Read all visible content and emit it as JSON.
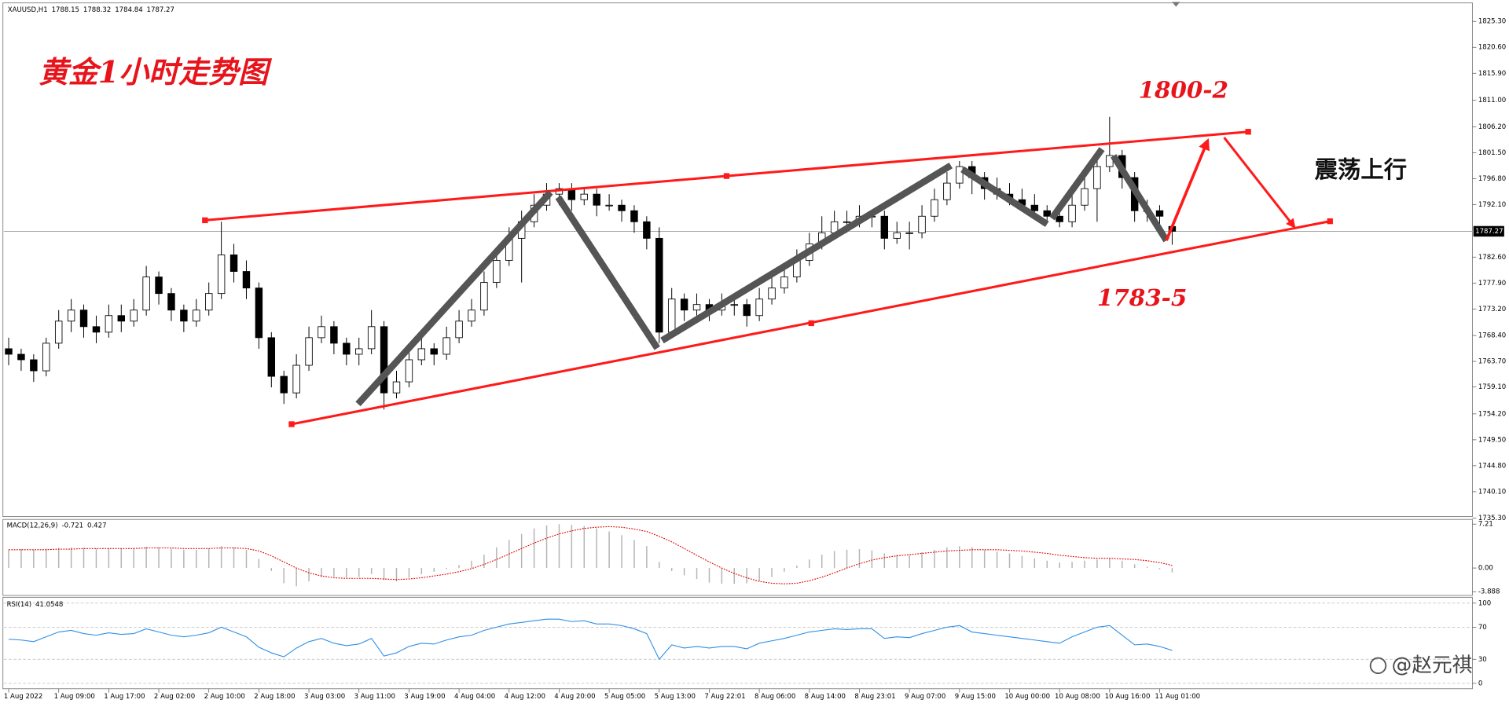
{
  "chart_data": [
    {
      "type": "candlestick",
      "title": "XAUUSD,H1",
      "categories": [
        "1 Aug 2022",
        null,
        null,
        null,
        "1 Aug 09:00",
        null,
        null,
        null,
        "1 Aug 17:00",
        null,
        null,
        null,
        "2 Aug 02:00",
        null,
        null,
        null,
        "2 Aug 10:00",
        null,
        null,
        null,
        "2 Aug 18:00",
        null,
        null,
        null,
        "3 Aug 03:00",
        null,
        null,
        null,
        "3 Aug 11:00",
        null,
        null,
        null,
        "3 Aug 19:00",
        null,
        null,
        null,
        "4 Aug 04:00",
        null,
        null,
        null,
        "4 Aug 12:00",
        null,
        null,
        null,
        "4 Aug 20:00",
        null,
        null,
        null,
        "5 Aug 05:00",
        null,
        null,
        null,
        "5 Aug 13:00",
        null,
        null,
        null,
        "7 Aug 22:01",
        null,
        null,
        null,
        "8 Aug 06:00",
        null,
        null,
        null,
        "8 Aug 14:00",
        null,
        null,
        null,
        "8 Aug 23:01",
        null,
        null,
        null,
        "9 Aug 07:00",
        null,
        null,
        null,
        "9 Aug 15:00",
        null,
        null,
        null,
        "10 Aug 00:00",
        null,
        null,
        null,
        "10 Aug 08:00",
        null,
        null,
        null,
        "10 Aug 16:00",
        null,
        null,
        null,
        "11 Aug 01:00",
        null
      ],
      "ohlc": [
        [
          1766,
          1768,
          1763,
          1765
        ],
        [
          1765,
          1766,
          1762,
          1764
        ],
        [
          1764,
          1765,
          1760,
          1762
        ],
        [
          1762,
          1768,
          1761,
          1767
        ],
        [
          1767,
          1773,
          1766,
          1771
        ],
        [
          1771,
          1775,
          1769,
          1773
        ],
        [
          1773,
          1774,
          1768,
          1770
        ],
        [
          1770,
          1772,
          1767,
          1769
        ],
        [
          1769,
          1774,
          1768,
          1772
        ],
        [
          1772,
          1774,
          1769,
          1771
        ],
        [
          1771,
          1775,
          1770,
          1773
        ],
        [
          1773,
          1781,
          1772,
          1779
        ],
        [
          1779,
          1780,
          1774,
          1776
        ],
        [
          1776,
          1777,
          1771,
          1773
        ],
        [
          1773,
          1774,
          1769,
          1771
        ],
        [
          1771,
          1775,
          1770,
          1773
        ],
        [
          1773,
          1778,
          1772,
          1776
        ],
        [
          1776,
          1789,
          1775,
          1783
        ],
        [
          1783,
          1785,
          1778,
          1780
        ],
        [
          1780,
          1782,
          1775,
          1777
        ],
        [
          1777,
          1778,
          1766,
          1768
        ],
        [
          1768,
          1769,
          1759,
          1761
        ],
        [
          1761,
          1762,
          1756,
          1758
        ],
        [
          1758,
          1765,
          1757,
          1763
        ],
        [
          1763,
          1770,
          1762,
          1768
        ],
        [
          1768,
          1772,
          1767,
          1770
        ],
        [
          1770,
          1771,
          1765,
          1767
        ],
        [
          1767,
          1768,
          1763,
          1765
        ],
        [
          1765,
          1768,
          1763,
          1766
        ],
        [
          1766,
          1773,
          1765,
          1770
        ],
        [
          1770,
          1771,
          1755,
          1758
        ],
        [
          1758,
          1762,
          1757,
          1760
        ],
        [
          1760,
          1766,
          1759,
          1764
        ],
        [
          1764,
          1768,
          1763,
          1766
        ],
        [
          1766,
          1767,
          1763,
          1765
        ],
        [
          1765,
          1770,
          1764,
          1768
        ],
        [
          1768,
          1773,
          1767,
          1771
        ],
        [
          1771,
          1775,
          1770,
          1773
        ],
        [
          1773,
          1780,
          1772,
          1778
        ],
        [
          1778,
          1784,
          1777,
          1782
        ],
        [
          1782,
          1788,
          1781,
          1786
        ],
        [
          1786,
          1791,
          1778,
          1789
        ],
        [
          1789,
          1794,
          1788,
          1792
        ],
        [
          1792,
          1796,
          1791,
          1794
        ],
        [
          1794,
          1796,
          1792,
          1795
        ],
        [
          1795,
          1796,
          1791,
          1793
        ],
        [
          1793,
          1795,
          1792,
          1794
        ],
        [
          1794,
          1795,
          1790,
          1792
        ],
        [
          1792,
          1794,
          1791,
          1792
        ],
        [
          1792,
          1793,
          1789,
          1791
        ],
        [
          1791,
          1792,
          1787,
          1789
        ],
        [
          1789,
          1790,
          1784,
          1786
        ],
        [
          1786,
          1788,
          1767,
          1769
        ],
        [
          1769,
          1777,
          1768,
          1775
        ],
        [
          1775,
          1776,
          1771,
          1773
        ],
        [
          1773,
          1776,
          1772,
          1774
        ],
        [
          1774,
          1775,
          1771,
          1773
        ],
        [
          1773,
          1776,
          1772,
          1774
        ],
        [
          1774,
          1776,
          1772,
          1774
        ],
        [
          1774,
          1775,
          1770,
          1772
        ],
        [
          1772,
          1777,
          1771,
          1775
        ],
        [
          1775,
          1779,
          1774,
          1777
        ],
        [
          1777,
          1781,
          1776,
          1779
        ],
        [
          1779,
          1784,
          1778,
          1782
        ],
        [
          1782,
          1787,
          1781,
          1785
        ],
        [
          1785,
          1790,
          1784,
          1787
        ],
        [
          1787,
          1791,
          1786,
          1789
        ],
        [
          1789,
          1791,
          1787,
          1789
        ],
        [
          1789,
          1792,
          1788,
          1790
        ],
        [
          1790,
          1791,
          1788,
          1790
        ],
        [
          1790,
          1791,
          1784,
          1786
        ],
        [
          1786,
          1789,
          1785,
          1787
        ],
        [
          1787,
          1789,
          1784,
          1787
        ],
        [
          1787,
          1792,
          1786,
          1790
        ],
        [
          1790,
          1795,
          1789,
          1793
        ],
        [
          1793,
          1798,
          1792,
          1796
        ],
        [
          1796,
          1800,
          1795,
          1799
        ],
        [
          1799,
          1800,
          1794,
          1797
        ],
        [
          1797,
          1798,
          1793,
          1795
        ],
        [
          1795,
          1797,
          1793,
          1794
        ],
        [
          1794,
          1796,
          1792,
          1793
        ],
        [
          1793,
          1795,
          1791,
          1792
        ],
        [
          1792,
          1794,
          1790,
          1791
        ],
        [
          1791,
          1792,
          1789,
          1790
        ],
        [
          1790,
          1791,
          1788,
          1789
        ],
        [
          1789,
          1794,
          1788,
          1792
        ],
        [
          1792,
          1797,
          1791,
          1795
        ],
        [
          1795,
          1801,
          1789,
          1799
        ],
        [
          1799,
          1808,
          1798,
          1801
        ],
        [
          1801,
          1802,
          1795,
          1797
        ],
        [
          1797,
          1798,
          1789,
          1791
        ],
        [
          1791,
          1793,
          1789,
          1791
        ],
        [
          1791,
          1792,
          1788,
          1790
        ],
        [
          1788.15,
          1788.32,
          1784.84,
          1787.27
        ]
      ],
      "ylim": [
        1735.6,
        1828.3
      ],
      "yticks": [
        {
          "value": 1825.3,
          "label": "1825.30"
        },
        {
          "value": 1820.6,
          "label": "1820.60"
        },
        {
          "value": 1815.9,
          "label": "1815.90"
        },
        {
          "value": 1811,
          "label": "1811.00"
        },
        {
          "value": 1806.2,
          "label": "1806.20"
        },
        {
          "value": 1801.5,
          "label": "1801.50"
        },
        {
          "value": 1796.8,
          "label": "1796.80"
        },
        {
          "value": 1792.1,
          "label": "1792.10"
        },
        {
          "value": 1782.6,
          "label": "1782.60"
        },
        {
          "value": 1777.9,
          "label": "1777.90"
        },
        {
          "value": 1773.2,
          "label": "1773.20"
        },
        {
          "value": 1768.4,
          "label": "1768.40"
        },
        {
          "value": 1763.7,
          "label": "1763.70"
        },
        {
          "value": 1759.1,
          "label": "1759.10"
        },
        {
          "value": 1754.2,
          "label": "1754.20"
        },
        {
          "value": 1749.5,
          "label": "1749.50"
        },
        {
          "value": 1744.8,
          "label": "1744.80"
        },
        {
          "value": 1740.1,
          "label": "1740.10"
        },
        {
          "value": 1735.3,
          "label": "1735.30"
        }
      ],
      "up_color": "#ffffff",
      "down_color": "#000000",
      "annotations": {
        "title": "黄金1小时走势图",
        "upper_target": "1800-2",
        "lower_target": "1783-5",
        "trend": "震荡上行"
      }
    },
    {
      "type": "macd",
      "title": "MACD(12,26,9)",
      "histogram": [
        3.0,
        3.1,
        3.0,
        3.2,
        3.3,
        3.4,
        3.3,
        3.2,
        3.3,
        3.2,
        3.3,
        3.5,
        3.4,
        3.2,
        3.0,
        3.0,
        3.2,
        3.6,
        3.4,
        3.0,
        1.5,
        -0.5,
        -2.5,
        -3.0,
        -2.2,
        -1.5,
        -1.4,
        -1.6,
        -1.5,
        -1.0,
        -2.0,
        -2.2,
        -1.6,
        -1.0,
        -0.6,
        -0.2,
        0.5,
        1.2,
        2.2,
        3.4,
        4.6,
        5.6,
        6.5,
        7.0,
        7.2,
        7.1,
        6.9,
        6.5,
        6.0,
        5.4,
        4.6,
        3.6,
        1.0,
        -0.5,
        -1.2,
        -1.8,
        -2.4,
        -2.6,
        -2.6,
        -2.5,
        -2.2,
        -1.5,
        -0.6,
        0.4,
        1.4,
        2.2,
        2.8,
        3.0,
        3.1,
        2.9,
        2.4,
        2.2,
        2.1,
        2.6,
        3.0,
        3.4,
        3.6,
        3.4,
        3.0,
        2.7,
        2.4,
        2.0,
        1.6,
        1.2,
        0.9,
        1.0,
        1.2,
        1.4,
        1.6,
        1.2,
        0.6,
        0.2,
        -0.2,
        -0.721
      ],
      "signal": [
        3.0,
        3.0,
        3.0,
        3.0,
        3.1,
        3.1,
        3.2,
        3.2,
        3.2,
        3.2,
        3.2,
        3.3,
        3.3,
        3.3,
        3.2,
        3.2,
        3.2,
        3.3,
        3.3,
        3.2,
        2.8,
        2.0,
        1.0,
        0.0,
        -0.8,
        -1.3,
        -1.6,
        -1.7,
        -1.7,
        -1.7,
        -1.8,
        -1.9,
        -1.8,
        -1.6,
        -1.3,
        -1.0,
        -0.6,
        -0.1,
        0.6,
        1.4,
        2.3,
        3.2,
        4.1,
        4.9,
        5.6,
        6.1,
        6.5,
        6.7,
        6.8,
        6.7,
        6.4,
        6.0,
        5.2,
        4.3,
        3.2,
        2.1,
        1.0,
        0.0,
        -0.9,
        -1.6,
        -2.2,
        -2.5,
        -2.6,
        -2.5,
        -2.1,
        -1.5,
        -0.8,
        0.0,
        0.7,
        1.3,
        1.7,
        2.0,
        2.2,
        2.4,
        2.6,
        2.8,
        2.9,
        3.0,
        3.0,
        3.0,
        2.9,
        2.8,
        2.6,
        2.4,
        2.1,
        1.9,
        1.7,
        1.6,
        1.6,
        1.5,
        1.4,
        1.2,
        0.9,
        0.427
      ],
      "histogram_color": "#b4b4b4",
      "signal_color": "#e00000",
      "ylim": [
        -4.5,
        7.98
      ],
      "yticks": [
        7.21,
        {
          "value": 0,
          "label": "0.00"
        },
        -3.888
      ]
    },
    {
      "type": "rsi",
      "title": "RSI(14)",
      "values": [
        55,
        54,
        52,
        58,
        64,
        66,
        62,
        60,
        63,
        61,
        62,
        68,
        64,
        60,
        58,
        60,
        63,
        70,
        64,
        58,
        45,
        38,
        33,
        44,
        52,
        56,
        50,
        47,
        49,
        56,
        34,
        38,
        46,
        50,
        49,
        54,
        58,
        60,
        66,
        70,
        74,
        76,
        78,
        80,
        80,
        77,
        78,
        74,
        74,
        72,
        68,
        62,
        30,
        48,
        44,
        46,
        44,
        46,
        46,
        43,
        50,
        53,
        56,
        60,
        64,
        66,
        68,
        67,
        68,
        68,
        56,
        58,
        57,
        62,
        66,
        70,
        72,
        64,
        62,
        60,
        58,
        56,
        54,
        52,
        50,
        58,
        64,
        70,
        72,
        60,
        48,
        49,
        46,
        41.0548
      ],
      "color": "#2f8fe6",
      "ylim": [
        -6.7,
        107.2
      ],
      "yticks": [
        100,
        70,
        30,
        0
      ],
      "grid": true
    }
  ],
  "watermark": "@赵元祺"
}
